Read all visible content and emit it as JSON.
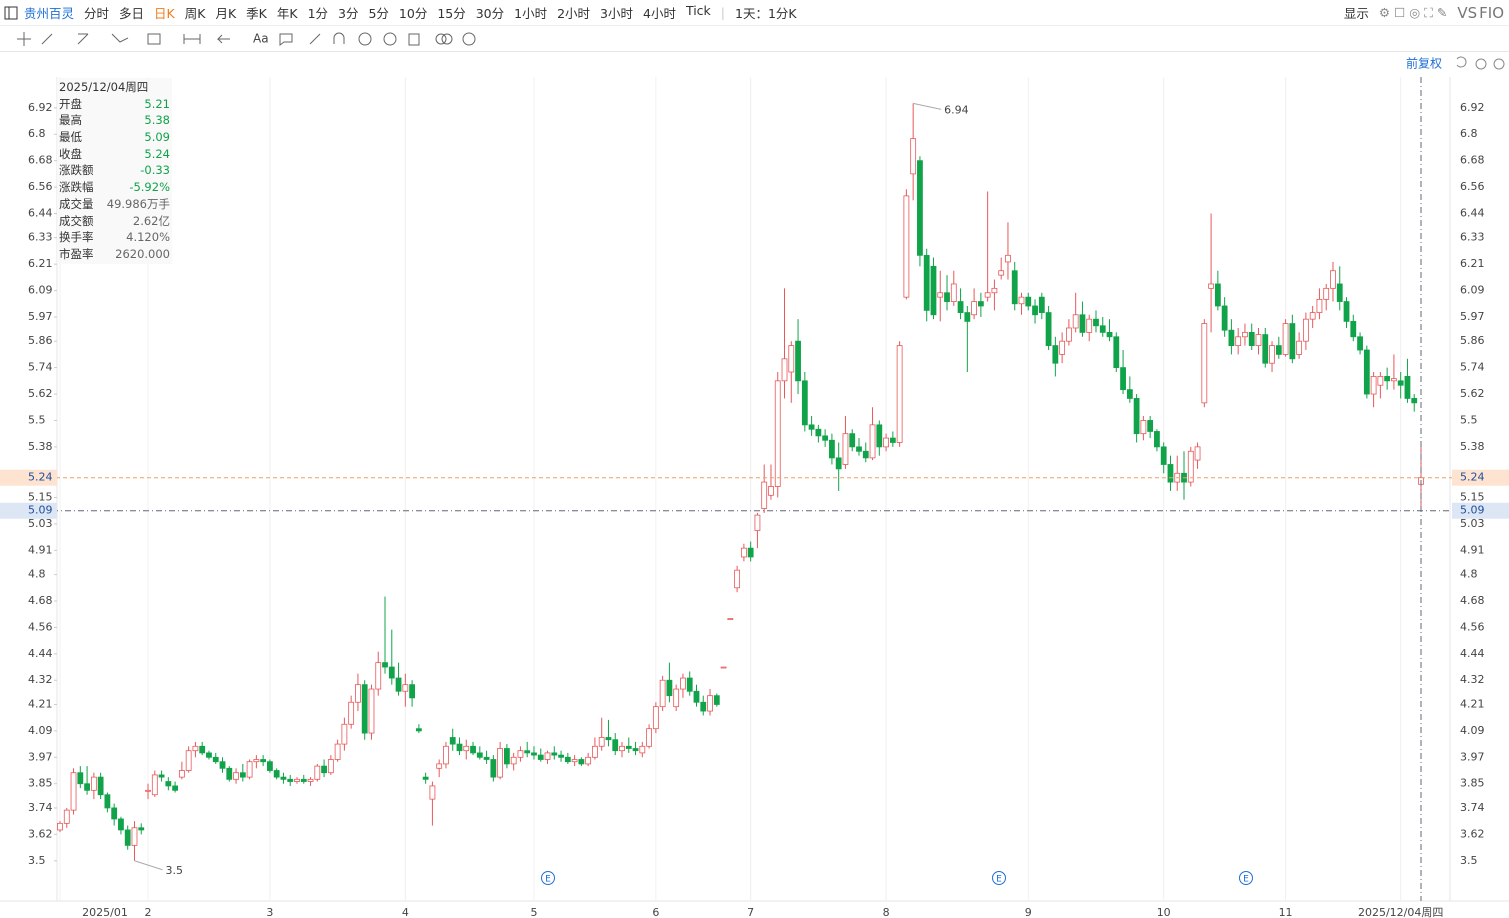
{
  "toolbar": {
    "stock": "贵州百灵",
    "periods": [
      "分时",
      "多日",
      "日K",
      "周K",
      "月K",
      "季K",
      "年K",
      "1分",
      "3分",
      "5分",
      "10分",
      "15分",
      "30分",
      "1小时",
      "2小时",
      "3小时",
      "4小时",
      "Tick"
    ],
    "active_period": "日K",
    "range": "1天：1分K",
    "display": "显示",
    "vs": "VS",
    "f10": "FIO",
    "adjust": "前复权"
  },
  "info": {
    "date": "2025/12/04周四",
    "labels": [
      "开盘",
      "最高",
      "最低",
      "收盘",
      "涨跌额",
      "涨跌幅",
      "成交量",
      "成交额",
      "换手率",
      "市盈率"
    ],
    "extra": [
      "-0.33",
      "-5.92%",
      "49.986万手",
      "2.62亿",
      "4.120%",
      "2620.000"
    ]
  },
  "markers": [
    "E",
    "E",
    "E"
  ],
  "chart_data": {
    "type": "candlestick",
    "up_color": "#e8585a",
    "down_color": "#10a34a",
    "ylim": [
      3.39,
      7.06
    ],
    "yticks": [
      6.92,
      6.8,
      6.68,
      6.56,
      6.44,
      6.33,
      6.21,
      6.09,
      5.97,
      5.86,
      5.74,
      5.62,
      5.5,
      5.38,
      5.15,
      5.03,
      4.91,
      4.8,
      4.68,
      4.56,
      4.44,
      4.32,
      4.21,
      4.09,
      3.97,
      3.85,
      3.74,
      3.62,
      3.5
    ],
    "grid": "x",
    "categories": [
      "2025/01",
      null,
      null,
      null,
      null,
      null,
      null,
      null,
      null,
      null,
      null,
      null,
      null,
      "2",
      null,
      null,
      null,
      null,
      null,
      null,
      null,
      null,
      null,
      null,
      null,
      null,
      null,
      null,
      null,
      null,
      null,
      "3",
      null,
      null,
      null,
      null,
      null,
      null,
      null,
      null,
      null,
      null,
      null,
      null,
      null,
      null,
      null,
      null,
      null,
      null,
      null,
      "4",
      null,
      null,
      null,
      null,
      null,
      null,
      null,
      null,
      null,
      null,
      null,
      null,
      null,
      null,
      null,
      null,
      null,
      null,
      "5",
      null,
      null,
      null,
      null,
      null,
      null,
      null,
      null,
      null,
      null,
      null,
      null,
      null,
      null,
      null,
      null,
      null,
      "6",
      null,
      null,
      null,
      null,
      null,
      null,
      null,
      null,
      null,
      null,
      null,
      null,
      null,
      "7",
      null,
      null,
      null,
      null,
      null,
      null,
      null,
      null,
      null,
      null,
      null,
      null,
      null,
      null,
      null,
      null,
      null,
      null,
      null,
      "8",
      null,
      null,
      null,
      null,
      null,
      null,
      null,
      null,
      null,
      null,
      null,
      null,
      null,
      null,
      null,
      null,
      null,
      null,
      null,
      null,
      "9",
      null,
      null,
      null,
      null,
      null,
      null,
      null,
      null,
      null,
      null,
      null,
      null,
      null,
      null,
      null,
      null,
      null,
      null,
      null,
      "10",
      null,
      null,
      null,
      null,
      null,
      null,
      null,
      null,
      null,
      null,
      null,
      null,
      null,
      null,
      null,
      null,
      null,
      "11",
      null,
      null,
      null,
      null,
      null,
      null,
      null,
      null,
      null,
      null,
      null,
      null,
      null,
      null,
      null,
      null,
      "2025/12/04周四"
    ],
    "candles": [
      [
        3.64,
        3.68,
        3.63,
        3.67
      ],
      [
        3.67,
        3.74,
        3.65,
        3.73
      ],
      [
        3.73,
        3.92,
        3.71,
        3.9
      ],
      [
        3.9,
        3.93,
        3.83,
        3.85
      ],
      [
        3.85,
        3.93,
        3.8,
        3.82
      ],
      [
        3.82,
        3.9,
        3.78,
        3.88
      ],
      [
        3.88,
        3.9,
        3.78,
        3.8
      ],
      [
        3.8,
        3.81,
        3.72,
        3.74
      ],
      [
        3.74,
        3.76,
        3.66,
        3.69
      ],
      [
        3.69,
        3.7,
        3.62,
        3.64
      ],
      [
        3.64,
        3.66,
        3.55,
        3.57
      ],
      [
        3.57,
        3.68,
        3.5,
        3.65
      ],
      [
        3.65,
        3.67,
        3.62,
        3.64
      ],
      [
        3.82,
        3.85,
        3.78,
        3.82
      ],
      [
        3.8,
        3.91,
        3.79,
        3.89
      ],
      [
        3.89,
        3.91,
        3.86,
        3.88
      ],
      [
        3.86,
        3.88,
        3.82,
        3.84
      ],
      [
        3.84,
        3.86,
        3.81,
        3.82
      ],
      [
        3.88,
        3.95,
        3.87,
        3.91
      ],
      [
        3.91,
        4.02,
        3.9,
        4.0
      ],
      [
        4.0,
        4.04,
        3.97,
        4.02
      ],
      [
        4.02,
        4.04,
        3.98,
        3.99
      ],
      [
        3.99,
        4.0,
        3.96,
        3.97
      ],
      [
        3.97,
        3.99,
        3.94,
        3.95
      ],
      [
        3.95,
        3.97,
        3.9,
        3.92
      ],
      [
        3.92,
        3.93,
        3.86,
        3.87
      ],
      [
        3.87,
        3.92,
        3.85,
        3.9
      ],
      [
        3.9,
        3.94,
        3.86,
        3.88
      ],
      [
        3.88,
        3.96,
        3.87,
        3.95
      ],
      [
        3.95,
        3.98,
        3.92,
        3.96
      ],
      [
        3.96,
        3.98,
        3.93,
        3.95
      ],
      [
        3.95,
        3.96,
        3.9,
        3.91
      ],
      [
        3.91,
        3.92,
        3.87,
        3.88
      ],
      [
        3.88,
        3.9,
        3.85,
        3.87
      ],
      [
        3.87,
        3.89,
        3.84,
        3.86
      ],
      [
        3.86,
        3.88,
        3.85,
        3.87
      ],
      [
        3.87,
        3.89,
        3.85,
        3.86
      ],
      [
        3.86,
        3.88,
        3.84,
        3.87
      ],
      [
        3.87,
        3.94,
        3.86,
        3.93
      ],
      [
        3.93,
        3.96,
        3.88,
        3.9
      ],
      [
        3.9,
        3.98,
        3.89,
        3.96
      ],
      [
        3.96,
        4.05,
        3.95,
        4.03
      ],
      [
        4.03,
        4.15,
        4.0,
        4.12
      ],
      [
        4.12,
        4.25,
        4.1,
        4.22
      ],
      [
        4.22,
        4.35,
        4.18,
        4.3
      ],
      [
        4.3,
        4.32,
        4.05,
        4.08
      ],
      [
        4.08,
        4.3,
        4.05,
        4.28
      ],
      [
        4.28,
        4.45,
        4.25,
        4.4
      ],
      [
        4.4,
        4.7,
        4.35,
        4.38
      ],
      [
        4.38,
        4.55,
        4.3,
        4.33
      ],
      [
        4.33,
        4.4,
        4.25,
        4.27
      ],
      [
        4.27,
        4.35,
        4.2,
        4.3
      ],
      [
        4.3,
        4.32,
        4.2,
        4.24
      ],
      [
        4.1,
        4.12,
        4.08,
        4.09
      ],
      [
        3.88,
        3.9,
        3.85,
        3.87
      ],
      [
        3.78,
        3.86,
        3.66,
        3.84
      ],
      [
        3.92,
        3.96,
        3.88,
        3.94
      ],
      [
        3.94,
        4.04,
        3.92,
        4.02
      ],
      [
        4.06,
        4.1,
        4.0,
        4.03
      ],
      [
        4.03,
        4.06,
        3.98,
        4.0
      ],
      [
        4.0,
        4.05,
        3.96,
        4.02
      ],
      [
        4.02,
        4.04,
        3.98,
        3.99
      ],
      [
        3.99,
        4.02,
        3.96,
        3.97
      ],
      [
        3.97,
        4.0,
        3.94,
        3.96
      ],
      [
        3.96,
        3.98,
        3.86,
        3.88
      ],
      [
        3.88,
        4.04,
        3.87,
        4.01
      ],
      [
        4.01,
        4.03,
        3.92,
        3.94
      ],
      [
        3.94,
        3.99,
        3.91,
        3.97
      ],
      [
        3.97,
        4.02,
        3.95,
        4.0
      ],
      [
        4.0,
        4.04,
        3.97,
        3.99
      ],
      [
        3.99,
        4.02,
        3.96,
        3.98
      ],
      [
        3.98,
        4.01,
        3.95,
        3.96
      ],
      [
        3.96,
        4.0,
        3.94,
        3.99
      ],
      [
        3.99,
        4.02,
        3.96,
        3.98
      ],
      [
        3.98,
        4.0,
        3.95,
        3.97
      ],
      [
        3.97,
        3.99,
        3.94,
        3.95
      ],
      [
        3.95,
        3.98,
        3.93,
        3.96
      ],
      [
        3.96,
        3.97,
        3.93,
        3.94
      ],
      [
        3.94,
        3.99,
        3.93,
        3.97
      ],
      [
        3.97,
        4.06,
        3.96,
        4.02
      ],
      [
        4.02,
        4.15,
        4.0,
        4.06
      ],
      [
        4.06,
        4.14,
        4.02,
        4.05
      ],
      [
        4.05,
        4.08,
        3.98,
        4.0
      ],
      [
        4.0,
        4.04,
        3.97,
        4.02
      ],
      [
        4.02,
        4.06,
        3.99,
        4.01
      ],
      [
        4.01,
        4.04,
        3.98,
        4.0
      ],
      [
        3.99,
        4.04,
        3.97,
        4.02
      ],
      [
        4.02,
        4.12,
        4.01,
        4.1
      ],
      [
        4.1,
        4.22,
        4.08,
        4.2
      ],
      [
        4.2,
        4.34,
        4.18,
        4.32
      ],
      [
        4.32,
        4.4,
        4.22,
        4.25
      ],
      [
        4.2,
        4.3,
        4.18,
        4.28
      ],
      [
        4.28,
        4.35,
        4.24,
        4.33
      ],
      [
        4.33,
        4.36,
        4.25,
        4.27
      ],
      [
        4.27,
        4.3,
        4.2,
        4.22
      ],
      [
        4.22,
        4.25,
        4.16,
        4.18
      ],
      [
        4.18,
        4.28,
        4.16,
        4.25
      ],
      [
        4.25,
        4.26,
        4.2,
        4.21
      ],
      [
        4.38,
        4.38,
        4.38,
        4.38
      ],
      [
        4.6,
        4.6,
        4.6,
        4.6
      ],
      [
        4.74,
        4.84,
        4.72,
        4.82
      ],
      [
        4.88,
        4.94,
        4.86,
        4.92
      ],
      [
        4.92,
        4.95,
        4.86,
        4.88
      ],
      [
        5.0,
        5.08,
        4.92,
        5.07
      ],
      [
        5.1,
        5.3,
        5.08,
        5.22
      ],
      [
        5.16,
        5.3,
        5.14,
        5.2
      ],
      [
        5.2,
        5.72,
        5.15,
        5.68
      ],
      [
        5.68,
        6.1,
        5.6,
        5.78
      ],
      [
        5.72,
        5.86,
        5.58,
        5.84
      ],
      [
        5.86,
        5.96,
        5.62,
        5.68
      ],
      [
        5.68,
        5.72,
        5.45,
        5.48
      ],
      [
        5.48,
        5.52,
        5.43,
        5.46
      ],
      [
        5.46,
        5.48,
        5.4,
        5.43
      ],
      [
        5.43,
        5.46,
        5.38,
        5.41
      ],
      [
        5.41,
        5.44,
        5.3,
        5.33
      ],
      [
        5.33,
        5.4,
        5.18,
        5.28
      ],
      [
        5.3,
        5.52,
        5.28,
        5.44
      ],
      [
        5.44,
        5.46,
        5.36,
        5.38
      ],
      [
        5.38,
        5.42,
        5.34,
        5.36
      ],
      [
        5.36,
        5.4,
        5.31,
        5.33
      ],
      [
        5.33,
        5.56,
        5.32,
        5.48
      ],
      [
        5.48,
        5.5,
        5.34,
        5.38
      ],
      [
        5.38,
        5.44,
        5.36,
        5.42
      ],
      [
        5.42,
        5.45,
        5.38,
        5.4
      ],
      [
        5.4,
        5.86,
        5.38,
        5.84
      ],
      [
        6.06,
        6.55,
        6.05,
        6.52
      ],
      [
        6.62,
        6.94,
        6.5,
        6.78
      ],
      [
        6.68,
        6.7,
        6.2,
        6.25
      ],
      [
        6.25,
        6.28,
        5.95,
        6.0
      ],
      [
        6.2,
        6.24,
        5.96,
        5.98
      ],
      [
        6.06,
        6.18,
        5.95,
        6.08
      ],
      [
        6.08,
        6.16,
        6.0,
        6.04
      ],
      [
        6.04,
        6.18,
        6.02,
        6.12
      ],
      [
        6.04,
        6.1,
        5.96,
        5.99
      ],
      [
        5.99,
        6.02,
        5.72,
        5.95
      ],
      [
        5.98,
        6.1,
        5.96,
        6.04
      ],
      [
        6.04,
        6.08,
        5.97,
        6.02
      ],
      [
        6.06,
        6.54,
        6.04,
        6.08
      ],
      [
        6.08,
        6.14,
        6.0,
        6.1
      ],
      [
        6.16,
        6.24,
        6.14,
        6.18
      ],
      [
        6.22,
        6.4,
        6.14,
        6.25
      ],
      [
        6.18,
        6.22,
        6.0,
        6.03
      ],
      [
        6.03,
        6.08,
        5.98,
        6.06
      ],
      [
        6.06,
        6.08,
        6.0,
        6.02
      ],
      [
        6.02,
        6.05,
        5.94,
        5.98
      ],
      [
        6.06,
        6.08,
        5.96,
        5.99
      ],
      [
        5.99,
        6.02,
        5.82,
        5.84
      ],
      [
        5.84,
        5.88,
        5.7,
        5.76
      ],
      [
        5.8,
        5.9,
        5.76,
        5.86
      ],
      [
        5.86,
        5.96,
        5.84,
        5.92
      ],
      [
        5.92,
        6.08,
        5.9,
        5.98
      ],
      [
        5.98,
        6.04,
        5.88,
        5.9
      ],
      [
        5.9,
        5.98,
        5.86,
        5.96
      ],
      [
        5.96,
        6.0,
        5.9,
        5.93
      ],
      [
        5.93,
        5.97,
        5.88,
        5.9
      ],
      [
        5.9,
        5.96,
        5.86,
        5.88
      ],
      [
        5.88,
        5.9,
        5.72,
        5.74
      ],
      [
        5.74,
        5.82,
        5.62,
        5.64
      ],
      [
        5.64,
        5.7,
        5.58,
        5.6
      ],
      [
        5.6,
        5.62,
        5.4,
        5.44
      ],
      [
        5.44,
        5.52,
        5.41,
        5.5
      ],
      [
        5.5,
        5.52,
        5.42,
        5.45
      ],
      [
        5.45,
        5.46,
        5.36,
        5.38
      ],
      [
        5.38,
        5.4,
        5.26,
        5.3
      ],
      [
        5.3,
        5.34,
        5.18,
        5.22
      ],
      [
        5.22,
        5.34,
        5.18,
        5.26
      ],
      [
        5.26,
        5.36,
        5.14,
        5.22
      ],
      [
        5.22,
        5.38,
        5.2,
        5.36
      ],
      [
        5.32,
        5.4,
        5.28,
        5.38
      ],
      [
        5.58,
        5.96,
        5.56,
        5.94
      ],
      [
        6.1,
        6.44,
        5.9,
        6.12
      ],
      [
        6.12,
        6.18,
        6.0,
        6.02
      ],
      [
        6.02,
        6.06,
        5.88,
        5.91
      ],
      [
        5.91,
        5.96,
        5.8,
        5.84
      ],
      [
        5.84,
        5.92,
        5.8,
        5.88
      ],
      [
        5.88,
        5.94,
        5.84,
        5.9
      ],
      [
        5.9,
        5.94,
        5.82,
        5.84
      ],
      [
        5.84,
        5.92,
        5.8,
        5.89
      ],
      [
        5.89,
        5.92,
        5.74,
        5.76
      ],
      [
        5.76,
        5.86,
        5.72,
        5.84
      ],
      [
        5.84,
        5.88,
        5.78,
        5.8
      ],
      [
        5.8,
        5.96,
        5.79,
        5.94
      ],
      [
        5.94,
        5.98,
        5.76,
        5.78
      ],
      [
        5.8,
        5.9,
        5.78,
        5.86
      ],
      [
        5.86,
        5.99,
        5.82,
        5.96
      ],
      [
        5.96,
        6.02,
        5.92,
        5.99
      ],
      [
        5.99,
        6.1,
        5.96,
        6.05
      ],
      [
        6.05,
        6.12,
        6.0,
        6.1
      ],
      [
        6.1,
        6.22,
        6.04,
        6.18
      ],
      [
        6.12,
        6.2,
        6.0,
        6.04
      ],
      [
        6.04,
        6.06,
        5.92,
        5.95
      ],
      [
        5.95,
        5.98,
        5.86,
        5.88
      ],
      [
        5.88,
        5.9,
        5.8,
        5.82
      ],
      [
        5.82,
        5.84,
        5.6,
        5.62
      ],
      [
        5.62,
        5.72,
        5.56,
        5.7
      ],
      [
        5.66,
        5.72,
        5.6,
        5.7
      ],
      [
        5.7,
        5.74,
        5.64,
        5.68
      ],
      [
        5.68,
        5.8,
        5.64,
        5.69
      ],
      [
        5.68,
        5.72,
        5.6,
        5.66
      ],
      [
        5.7,
        5.78,
        5.58,
        5.6
      ],
      [
        5.6,
        5.62,
        5.54,
        5.58
      ],
      [
        5.21,
        5.38,
        5.09,
        5.24
      ]
    ],
    "max_index": 126,
    "min_index": 11
  }
}
